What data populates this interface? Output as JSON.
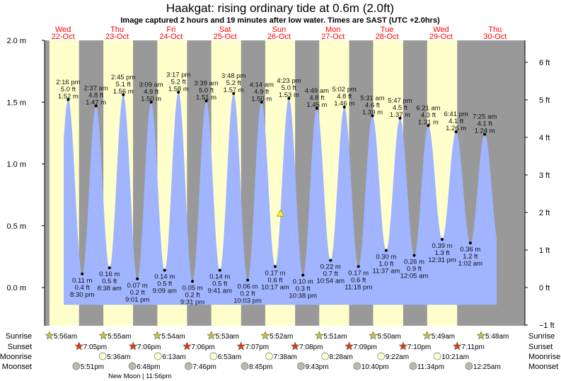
{
  "chart_data": {
    "type": "area",
    "title": "Haakgat: rising  ordinary tide at 0.6m (2.0ft)",
    "subtitle": "Image captured 2 hours and 19 minutes after low water. Times are SAST (UTC +2.0hrs)",
    "ylabel_left": "m",
    "ylabel_right": "ft",
    "ylim_m": [
      -0.31,
      2.0
    ],
    "left_ticks": [
      "2.0 m",
      "1.5 m",
      "1.0 m",
      "0.5 m",
      "0.0 m"
    ],
    "left_tick_values": [
      2.0,
      1.5,
      1.0,
      0.5,
      0.0
    ],
    "right_ticks": [
      "6 ft",
      "5 ft",
      "4 ft",
      "3 ft",
      "2 ft",
      "1 ft",
      "0 ft",
      "−1 ft"
    ],
    "right_tick_values": [
      6,
      5,
      4,
      3,
      2,
      1,
      0,
      -1
    ],
    "days": [
      {
        "dow": "Wed",
        "date": "22-Oct"
      },
      {
        "dow": "Thu",
        "date": "23-Oct"
      },
      {
        "dow": "Fri",
        "date": "24-Oct"
      },
      {
        "dow": "Sat",
        "date": "25-Oct"
      },
      {
        "dow": "Sun",
        "date": "26-Oct"
      },
      {
        "dow": "Mon",
        "date": "27-Oct"
      },
      {
        "dow": "Tue",
        "date": "28-Oct"
      },
      {
        "dow": "Wed",
        "date": "29-Oct"
      },
      {
        "dow": "Thu",
        "date": "30-Oct"
      }
    ],
    "tides": [
      {
        "day": 0,
        "time": "2:16 pm",
        "h": 14.27,
        "type": "high",
        "m": "1.52 m",
        "ft": "5.0 ft",
        "v": 1.52
      },
      {
        "day": 0,
        "time": "8:30 pm",
        "h": 20.5,
        "type": "low",
        "m": "0.11 m",
        "ft": "0.4 ft",
        "v": 0.11
      },
      {
        "day": 1,
        "time": "2:37 am",
        "h": 2.62,
        "type": "high",
        "m": "1.47 m",
        "ft": "4.8 ft",
        "v": 1.47
      },
      {
        "day": 1,
        "time": "8:38 am",
        "h": 8.63,
        "type": "low",
        "m": "0.16 m",
        "ft": "0.5 ft",
        "v": 0.16
      },
      {
        "day": 1,
        "time": "2:45 pm",
        "h": 14.75,
        "type": "high",
        "m": "1.56 m",
        "ft": "5.1 ft",
        "v": 1.56
      },
      {
        "day": 1,
        "time": "9:01 pm",
        "h": 21.02,
        "type": "low",
        "m": "0.07 m",
        "ft": "0.2 ft",
        "v": 0.07
      },
      {
        "day": 2,
        "time": "3:09 am",
        "h": 3.15,
        "type": "high",
        "m": "1.50 m",
        "ft": "4.9 ft",
        "v": 1.5
      },
      {
        "day": 2,
        "time": "9:09 am",
        "h": 9.15,
        "type": "low",
        "m": "0.14 m",
        "ft": "0.5 ft",
        "v": 0.14
      },
      {
        "day": 2,
        "time": "3:17 pm",
        "h": 15.28,
        "type": "high",
        "m": "1.58 m",
        "ft": "5.2 ft",
        "v": 1.58
      },
      {
        "day": 2,
        "time": "9:31 pm",
        "h": 21.52,
        "type": "low",
        "m": "0.05 m",
        "ft": "0.2 ft",
        "v": 0.05
      },
      {
        "day": 3,
        "time": "3:39 am",
        "h": 3.65,
        "type": "high",
        "m": "1.51 m",
        "ft": "5.0 ft",
        "v": 1.51
      },
      {
        "day": 3,
        "time": "9:41 am",
        "h": 9.68,
        "type": "low",
        "m": "0.14 m",
        "ft": "0.5 ft",
        "v": 0.14
      },
      {
        "day": 3,
        "time": "3:48 pm",
        "h": 15.8,
        "type": "high",
        "m": "1.57 m",
        "ft": "5.2 ft",
        "v": 1.57
      },
      {
        "day": 3,
        "time": "10:03 pm",
        "h": 22.05,
        "type": "low",
        "m": "0.06 m",
        "ft": "0.2 ft",
        "v": 0.06
      },
      {
        "day": 4,
        "time": "4:14 am",
        "h": 4.23,
        "type": "high",
        "m": "1.50 m",
        "ft": "4.9 ft",
        "v": 1.5
      },
      {
        "day": 4,
        "time": "10:17 am",
        "h": 10.28,
        "type": "low",
        "m": "0.17 m",
        "ft": "0.6 ft",
        "v": 0.17
      },
      {
        "day": 4,
        "time": "4:23 pm",
        "h": 16.38,
        "type": "high",
        "m": "1.53 m",
        "ft": "5.0 ft",
        "v": 1.53
      },
      {
        "day": 4,
        "time": "10:38 pm",
        "h": 22.63,
        "type": "low",
        "m": "0.10 m",
        "ft": "0.3 ft",
        "v": 0.1
      },
      {
        "day": 5,
        "time": "4:49 am",
        "h": 4.82,
        "type": "high",
        "m": "1.45 m",
        "ft": "4.8 ft",
        "v": 1.45
      },
      {
        "day": 5,
        "time": "10:54 am",
        "h": 10.9,
        "type": "low",
        "m": "0.22 m",
        "ft": "0.7 ft",
        "v": 0.22
      },
      {
        "day": 5,
        "time": "5:02 pm",
        "h": 17.03,
        "type": "high",
        "m": "1.46 m",
        "ft": "4.8 ft",
        "v": 1.46
      },
      {
        "day": 5,
        "time": "11:18 pm",
        "h": 23.3,
        "type": "low",
        "m": "0.17 m",
        "ft": "0.6 ft",
        "v": 0.17
      },
      {
        "day": 6,
        "time": "5:31 am",
        "h": 5.52,
        "type": "high",
        "m": "1.39 m",
        "ft": "4.6 ft",
        "v": 1.39
      },
      {
        "day": 6,
        "time": "11:37 am",
        "h": 11.62,
        "type": "low",
        "m": "0.30 m",
        "ft": "1.0 ft",
        "v": 0.3
      },
      {
        "day": 6,
        "time": "5:47 pm",
        "h": 17.78,
        "type": "high",
        "m": "1.37 m",
        "ft": "4.5 ft",
        "v": 1.37
      },
      {
        "day": 7,
        "time": "12:05 am",
        "h": 0.08,
        "type": "low",
        "m": "0.26 m",
        "ft": "0.9 ft",
        "v": 0.26
      },
      {
        "day": 7,
        "time": "6:21 am",
        "h": 6.35,
        "type": "high",
        "m": "1.31 m",
        "ft": "4.3 ft",
        "v": 1.31
      },
      {
        "day": 7,
        "time": "12:31 pm",
        "h": 12.52,
        "type": "low",
        "m": "0.39 m",
        "ft": "1.3 ft",
        "v": 0.39
      },
      {
        "day": 7,
        "time": "6:41 pm",
        "h": 18.68,
        "type": "high",
        "m": "1.26 m",
        "ft": "4.1 ft",
        "v": 1.26
      },
      {
        "day": 8,
        "time": "1:02 am",
        "h": 1.03,
        "type": "low",
        "m": "0.36 m",
        "ft": "1.2 ft",
        "v": 0.36
      },
      {
        "day": 8,
        "time": "7:25 am",
        "h": 7.42,
        "type": "high",
        "m": "1.24 m",
        "ft": "4.1 ft",
        "v": 1.24
      }
    ],
    "current": {
      "day": 4,
      "h": 12.6,
      "v": 0.6
    },
    "sun_moon": {
      "labels": {
        "sunrise": "Sunrise",
        "sunset": "Sunset",
        "moonrise": "Moonrise",
        "moonset": "Moonset"
      },
      "sunrise": [
        {
          "day": 0,
          "h": 5.93,
          "t": "5:56am"
        },
        {
          "day": 1,
          "h": 5.92,
          "t": "5:55am"
        },
        {
          "day": 2,
          "h": 5.9,
          "t": "5:54am"
        },
        {
          "day": 3,
          "h": 5.88,
          "t": "5:53am"
        },
        {
          "day": 4,
          "h": 5.87,
          "t": "5:52am"
        },
        {
          "day": 5,
          "h": 5.85,
          "t": "5:51am"
        },
        {
          "day": 6,
          "h": 5.83,
          "t": "5:50am"
        },
        {
          "day": 7,
          "h": 5.82,
          "t": "5:49am"
        },
        {
          "day": 8,
          "h": 5.8,
          "t": "5:48am"
        }
      ],
      "sunset": [
        {
          "day": 0,
          "h": 19.08,
          "t": "7:05pm"
        },
        {
          "day": 1,
          "h": 19.1,
          "t": "7:06pm"
        },
        {
          "day": 2,
          "h": 19.1,
          "t": "7:06pm"
        },
        {
          "day": 3,
          "h": 19.12,
          "t": "7:07pm"
        },
        {
          "day": 4,
          "h": 19.13,
          "t": "7:08pm"
        },
        {
          "day": 5,
          "h": 19.15,
          "t": "7:09pm"
        },
        {
          "day": 6,
          "h": 19.17,
          "t": "7:10pm"
        },
        {
          "day": 7,
          "h": 19.18,
          "t": "7:11pm"
        }
      ],
      "moonrise": [
        {
          "day": 1,
          "h": 5.6,
          "t": "5:36am"
        },
        {
          "day": 2,
          "h": 6.22,
          "t": "6:13am"
        },
        {
          "day": 3,
          "h": 6.88,
          "t": "6:53am"
        },
        {
          "day": 4,
          "h": 7.63,
          "t": "7:38am"
        },
        {
          "day": 5,
          "h": 8.47,
          "t": "8:28am"
        },
        {
          "day": 6,
          "h": 9.37,
          "t": "9:22am"
        },
        {
          "day": 7,
          "h": 10.35,
          "t": "10:21am"
        }
      ],
      "moonset": [
        {
          "day": 0,
          "h": 17.85,
          "t": "5:51pm"
        },
        {
          "day": 1,
          "h": 18.8,
          "t": "6:48pm"
        },
        {
          "day": 2,
          "h": 19.77,
          "t": "7:46pm"
        },
        {
          "day": 3,
          "h": 20.75,
          "t": "8:45pm"
        },
        {
          "day": 4,
          "h": 21.72,
          "t": "9:43pm"
        },
        {
          "day": 5,
          "h": 22.67,
          "t": "10:40pm"
        },
        {
          "day": 6,
          "h": 23.57,
          "t": "11:34pm"
        },
        {
          "day": 8,
          "h": 0.42,
          "t": "12:25am"
        }
      ],
      "moon_phase": "New Moon | 11:56pm"
    },
    "colors": {
      "night": "#999999",
      "day": "#ffffcc",
      "water": "#a0b4ff",
      "day_label": "#ff0000",
      "sunrise": "#c8c040",
      "sunset": "#e03a1a",
      "moonrise": "#ffffcc",
      "moonset": "#bbbbaa"
    }
  }
}
